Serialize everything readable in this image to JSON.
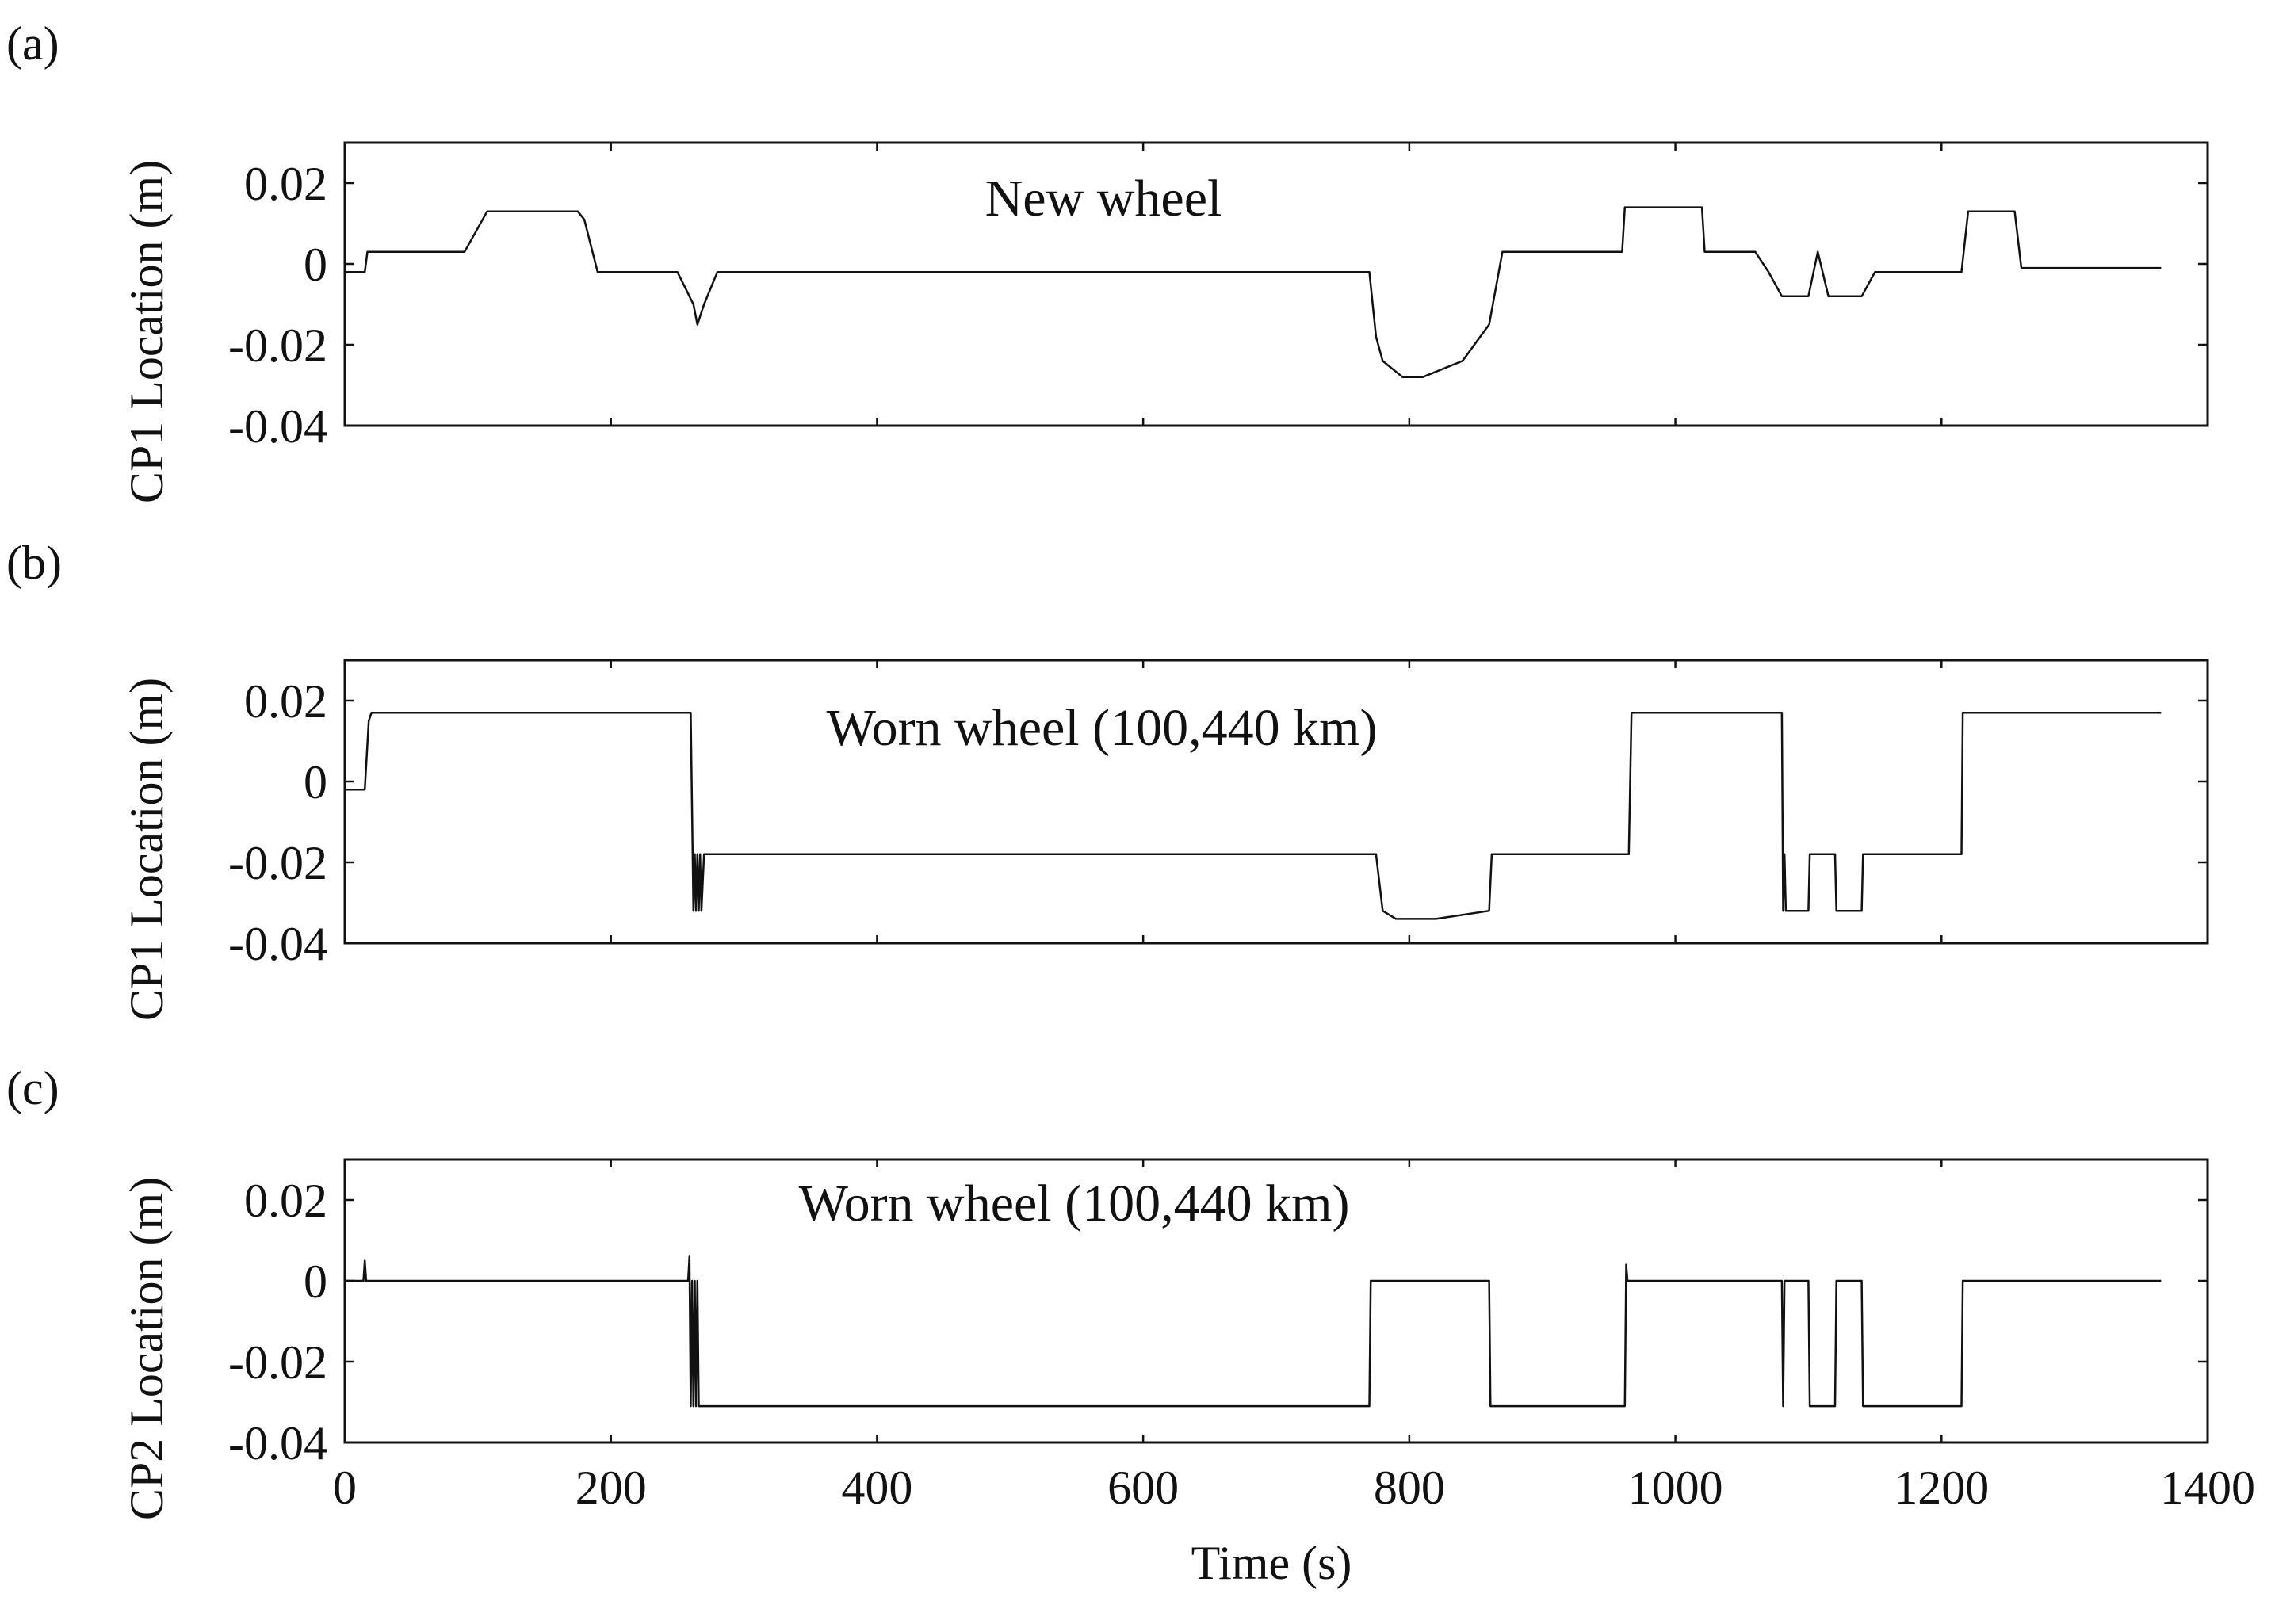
{
  "chart_data": [
    {
      "type": "line",
      "panel_label": "(a)",
      "ylabel": "CP1 Location (m)",
      "annotation": "New wheel",
      "xlim": [
        0,
        1400
      ],
      "ylim": [
        -0.04,
        0.03
      ],
      "yticks": [
        0.02,
        0,
        -0.02,
        -0.04
      ],
      "ytick_labels": [
        "0.02",
        "0",
        "-0.02",
        "-0.04"
      ],
      "x": [
        0,
        15,
        17,
        18,
        90,
        107,
        175,
        180,
        190,
        250,
        262,
        265,
        270,
        280,
        770,
        775,
        780,
        795,
        810,
        840,
        860,
        870,
        960,
        962,
        965,
        1020,
        1022,
        1060,
        1070,
        1080,
        1095,
        1100,
        1107,
        1115,
        1125,
        1140,
        1145,
        1150,
        1215,
        1220,
        1225,
        1255,
        1260,
        1365
      ],
      "y": [
        -0.002,
        -0.002,
        0.003,
        0.003,
        0.003,
        0.013,
        0.013,
        0.011,
        -0.002,
        -0.002,
        -0.01,
        -0.015,
        -0.01,
        -0.002,
        -0.002,
        -0.018,
        -0.024,
        -0.028,
        -0.028,
        -0.024,
        -0.015,
        0.003,
        0.003,
        0.014,
        0.014,
        0.014,
        0.003,
        0.003,
        -0.002,
        -0.008,
        -0.008,
        -0.008,
        0.003,
        -0.008,
        -0.008,
        -0.008,
        -0.005,
        -0.002,
        -0.002,
        0.013,
        0.013,
        0.013,
        -0.001,
        -0.001
      ]
    },
    {
      "type": "line",
      "panel_label": "(b)",
      "ylabel": "CP1 Location (m)",
      "annotation": "Worn wheel (100,440 km)",
      "xlim": [
        0,
        1400
      ],
      "ylim": [
        -0.04,
        0.03
      ],
      "yticks": [
        0.02,
        0,
        -0.02,
        -0.04
      ],
      "ytick_labels": [
        "0.02",
        "0",
        "-0.02",
        "-0.04"
      ],
      "x": [
        0,
        15,
        18,
        20,
        260,
        262,
        263,
        264,
        265,
        266,
        267,
        268,
        270,
        272,
        775,
        780,
        790,
        800,
        820,
        860,
        862,
        965,
        967,
        1080,
        1081,
        1082,
        1083,
        1085,
        1100,
        1101,
        1120,
        1121,
        1140,
        1141,
        1215,
        1216,
        1365
      ],
      "y": [
        -0.002,
        -0.002,
        0.015,
        0.017,
        0.017,
        -0.032,
        -0.018,
        -0.032,
        -0.018,
        -0.032,
        -0.018,
        -0.032,
        -0.018,
        -0.018,
        -0.018,
        -0.032,
        -0.034,
        -0.034,
        -0.034,
        -0.032,
        -0.018,
        -0.018,
        0.017,
        0.017,
        -0.032,
        -0.018,
        -0.032,
        -0.032,
        -0.032,
        -0.018,
        -0.018,
        -0.032,
        -0.032,
        -0.018,
        -0.018,
        0.017,
        0.017
      ]
    },
    {
      "type": "line",
      "panel_label": "(c)",
      "ylabel": "CP2 Location (m)",
      "annotation": "Worn wheel (100,440 km)",
      "xlabel": "Time (s)",
      "xlim": [
        0,
        1400
      ],
      "ylim": [
        -0.04,
        0.03
      ],
      "yticks": [
        0.02,
        0,
        -0.02,
        -0.04
      ],
      "ytick_labels": [
        "0.02",
        "0",
        "-0.02",
        "-0.04"
      ],
      "xticks": [
        0,
        200,
        400,
        600,
        800,
        1000,
        1200,
        1400
      ],
      "xtick_labels": [
        "0",
        "200",
        "400",
        "600",
        "800",
        "1000",
        "1200",
        "1400"
      ],
      "x": [
        0,
        14,
        15,
        16,
        258,
        259,
        260,
        261,
        262,
        263,
        264,
        265,
        266,
        267,
        270,
        770,
        771,
        860,
        861,
        962,
        963,
        964,
        1080,
        1081,
        1082,
        1083,
        1100,
        1101,
        1120,
        1121,
        1140,
        1141,
        1215,
        1216,
        1365
      ],
      "y": [
        0,
        0,
        0.005,
        0,
        0,
        0.006,
        -0.031,
        0,
        -0.031,
        0,
        -0.031,
        0,
        -0.031,
        -0.031,
        -0.031,
        -0.031,
        0,
        0,
        -0.031,
        -0.031,
        0.004,
        0,
        0,
        -0.031,
        0,
        0,
        0,
        -0.031,
        -0.031,
        0,
        0,
        -0.031,
        -0.031,
        0,
        0
      ]
    }
  ]
}
